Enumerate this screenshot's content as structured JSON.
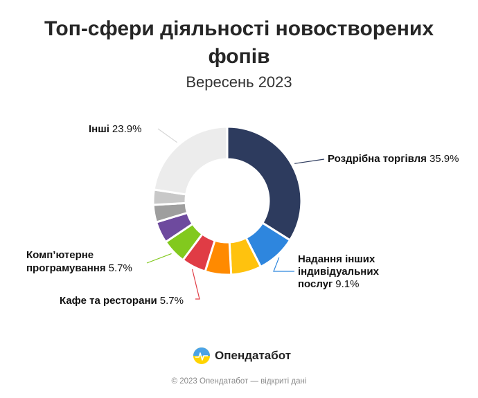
{
  "title_line1": "Топ-сфери діяльності новостворених",
  "title_line2": "фопів",
  "subtitle": "Вересень 2023",
  "brand": "Опендатабот",
  "footer": "© 2023 Опендатабот — відкриті дані",
  "chart_data": {
    "type": "pie",
    "donut": true,
    "title": "Топ-сфери діяльності новостворених фопів",
    "subtitle": "Вересень 2023",
    "unit": "%",
    "slices": [
      {
        "label": "Роздрібна торгівля",
        "value": 35.9,
        "color": "#2d3b5e"
      },
      {
        "label": "Надання інших індивідуальних послуг",
        "value": 9.1,
        "color": "#2e86de"
      },
      {
        "label": "",
        "value": 7.0,
        "color": "#ffc20e"
      },
      {
        "label": "",
        "value": 6.0,
        "color": "#ff8a00"
      },
      {
        "label": "Кафе та ресторани",
        "value": 5.7,
        "color": "#e03c45"
      },
      {
        "label": "Комп’ютерне програмування",
        "value": 5.7,
        "color": "#82c91e"
      },
      {
        "label": "",
        "value": 5.0,
        "color": "#6e4a9e"
      },
      {
        "label": "",
        "value": 4.0,
        "color": "#9e9e9e"
      },
      {
        "label": "",
        "value": 3.5,
        "color": "#c8c8c8"
      },
      {
        "label": "Інші",
        "value": 23.9,
        "color": "#ececec"
      }
    ]
  }
}
